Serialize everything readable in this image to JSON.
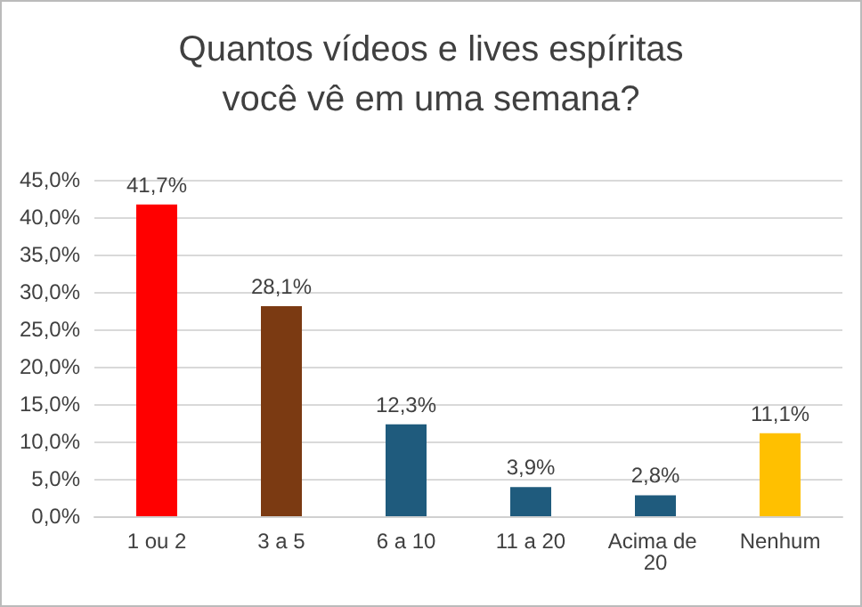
{
  "chart_data": {
    "type": "bar",
    "title": "Quantos vídeos e lives espíritas\nvocê vê em uma semana?",
    "categories": [
      "1 ou 2",
      "3 a 5",
      "6 a 10",
      "11 a 20",
      "Acima de 20",
      "Nenhum"
    ],
    "values": [
      41.7,
      28.1,
      12.3,
      3.9,
      2.8,
      11.1
    ],
    "colors": [
      "#ff0000",
      "#7b3a12",
      "#1f5b7d",
      "#1f5b7d",
      "#1f5b7d",
      "#ffc000"
    ],
    "value_labels": [
      "41,7%",
      "28,1%",
      "12,3%",
      "3,9%",
      "2,8%",
      "11,1%"
    ],
    "ylim": [
      0,
      45
    ],
    "yticks": [
      {
        "value": 0,
        "label": "0,0%"
      },
      {
        "value": 5,
        "label": "5,0%"
      },
      {
        "value": 10,
        "label": "10,0%"
      },
      {
        "value": 15,
        "label": "15,0%"
      },
      {
        "value": 20,
        "label": "20,0%"
      },
      {
        "value": 25,
        "label": "25,0%"
      },
      {
        "value": 30,
        "label": "30,0%"
      },
      {
        "value": 35,
        "label": "35,0%"
      },
      {
        "value": 40,
        "label": "40,0%"
      },
      {
        "value": 45,
        "label": "45,0%"
      }
    ],
    "grid": "y"
  }
}
